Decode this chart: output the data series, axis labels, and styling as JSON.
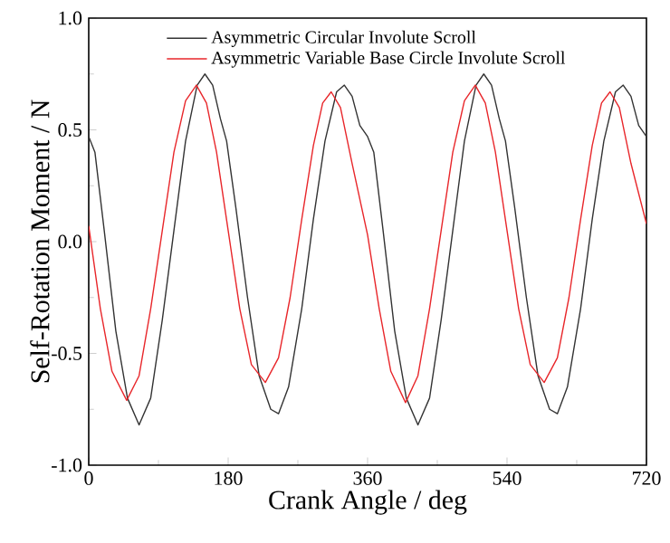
{
  "chart_data": {
    "type": "line",
    "xlabel": "Crank Angle / deg",
    "ylabel": "Self-Rotation Moment / N",
    "xlim": [
      0,
      720
    ],
    "xticks": [
      0,
      180,
      360,
      540,
      720
    ],
    "ylim": [
      -1.0,
      1.0
    ],
    "yticks": [
      {
        "value": -1.0,
        "label": "-1.0"
      },
      {
        "value": -0.5,
        "label": "-0.5"
      },
      {
        "value": 0.0,
        "label": "0.0"
      },
      {
        "value": 0.5,
        "label": "0.5"
      },
      {
        "value": 1.0,
        "label": "1.0"
      }
    ],
    "legend": "top",
    "grid": false,
    "marker": "none",
    "line_style": "solid",
    "series": [
      {
        "name": "Asymmetric Circular Involute Scroll",
        "color": "#333333",
        "x": [
          0,
          8,
          20,
          35,
          50,
          65,
          80,
          95,
          110,
          125,
          140,
          150,
          160,
          170,
          178,
          190,
          205,
          220,
          235,
          245,
          258,
          275,
          290,
          305,
          320,
          330,
          340,
          350,
          360,
          368,
          380,
          395,
          410,
          425,
          440,
          455,
          470,
          485,
          500,
          510,
          520,
          530,
          538,
          550,
          565,
          580,
          595,
          605,
          618,
          635,
          650,
          665,
          680,
          690,
          700,
          710,
          720
        ],
        "values": [
          0.47,
          0.4,
          0.05,
          -0.4,
          -0.7,
          -0.82,
          -0.7,
          -0.35,
          0.05,
          0.45,
          0.7,
          0.75,
          0.7,
          0.55,
          0.45,
          0.15,
          -0.25,
          -0.6,
          -0.75,
          -0.77,
          -0.65,
          -0.3,
          0.1,
          0.45,
          0.67,
          0.7,
          0.65,
          0.52,
          0.47,
          0.4,
          0.05,
          -0.4,
          -0.7,
          -0.82,
          -0.7,
          -0.35,
          0.05,
          0.45,
          0.7,
          0.75,
          0.7,
          0.55,
          0.45,
          0.15,
          -0.25,
          -0.6,
          -0.75,
          -0.77,
          -0.65,
          -0.3,
          0.1,
          0.45,
          0.67,
          0.7,
          0.65,
          0.52,
          0.47
        ]
      },
      {
        "name": "Asymmetric Variable Base Circle Involute Scroll",
        "color": "#e8262a",
        "x": [
          0,
          15,
          30,
          49,
          65,
          80,
          95,
          110,
          125,
          139,
          152,
          165,
          180,
          195,
          210,
          228,
          245,
          260,
          275,
          290,
          302,
          313,
          325,
          340,
          360,
          375,
          390,
          409,
          425,
          440,
          455,
          470,
          485,
          499,
          512,
          525,
          540,
          555,
          570,
          588,
          605,
          620,
          635,
          650,
          662,
          673,
          685,
          700,
          720
        ],
        "values": [
          0.07,
          -0.3,
          -0.58,
          -0.71,
          -0.6,
          -0.3,
          0.05,
          0.4,
          0.63,
          0.7,
          0.62,
          0.4,
          0.05,
          -0.3,
          -0.55,
          -0.63,
          -0.52,
          -0.25,
          0.1,
          0.43,
          0.62,
          0.67,
          0.6,
          0.35,
          0.03,
          -0.3,
          -0.58,
          -0.72,
          -0.6,
          -0.3,
          0.05,
          0.4,
          0.63,
          0.7,
          0.62,
          0.4,
          0.05,
          -0.3,
          -0.55,
          -0.63,
          -0.52,
          -0.25,
          0.1,
          0.43,
          0.62,
          0.67,
          0.6,
          0.35,
          0.08
        ]
      }
    ]
  }
}
